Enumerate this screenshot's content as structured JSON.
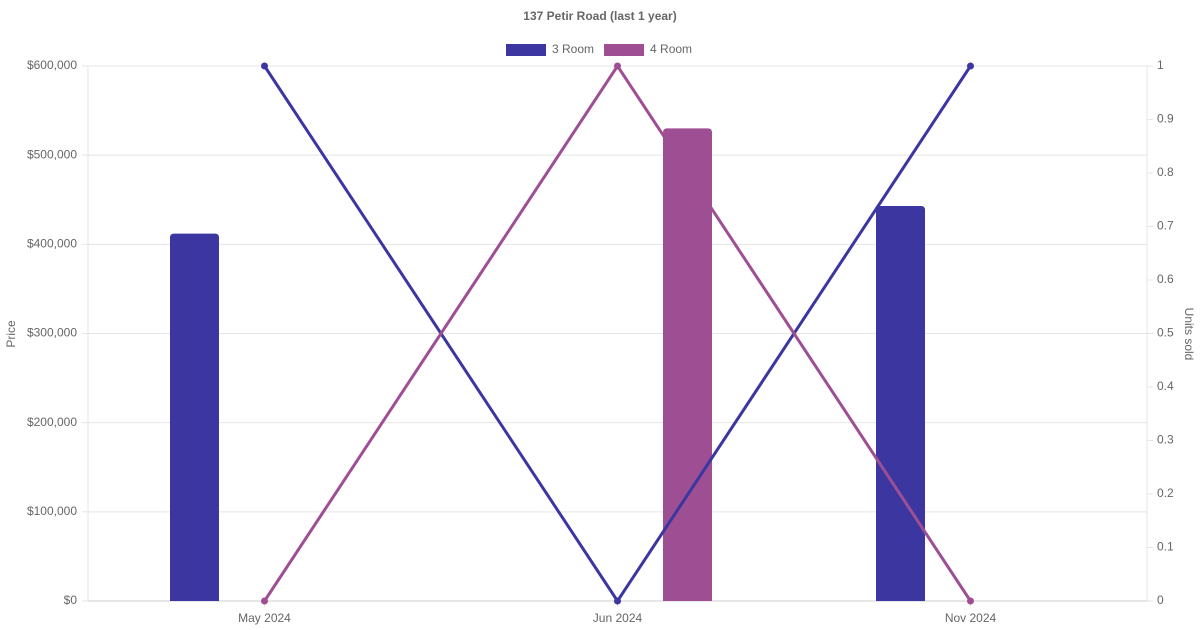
{
  "chart_data": {
    "type": "bar-line",
    "title": "137 Petir Road (last 1 year)",
    "categories": [
      "May 2024",
      "Jun 2024",
      "Nov 2024"
    ],
    "series": [
      {
        "name": "3 Room",
        "color": "#3b36a0",
        "values": [
          412000,
          null,
          443000
        ],
        "units_sold": [
          1,
          0,
          1
        ]
      },
      {
        "name": "4 Room",
        "color": "#9e4f93",
        "values": [
          null,
          530000,
          null
        ],
        "units_sold": [
          0,
          1,
          0
        ]
      }
    ],
    "ylabel": "Price",
    "y2label": "Units sold",
    "ylim": [
      0,
      600000
    ],
    "yticks": [
      {
        "value": 0,
        "label": "$0"
      },
      {
        "value": 100000,
        "label": "$100,000"
      },
      {
        "value": 200000,
        "label": "$200,000"
      },
      {
        "value": 300000,
        "label": "$300,000"
      },
      {
        "value": 400000,
        "label": "$400,000"
      },
      {
        "value": 500000,
        "label": "$500,000"
      },
      {
        "value": 600000,
        "label": "$600,000"
      }
    ],
    "y2lim": [
      0,
      1
    ],
    "y2ticks": [
      0,
      0.1,
      0.2,
      0.3,
      0.4,
      0.5,
      0.6,
      0.7,
      0.8,
      0.9,
      1
    ],
    "grid": true,
    "legend": "top"
  }
}
